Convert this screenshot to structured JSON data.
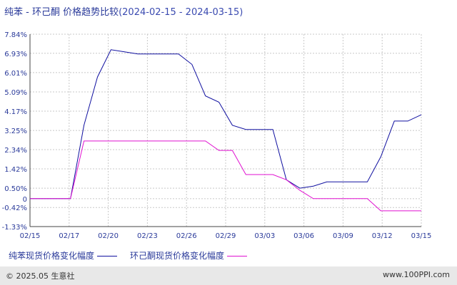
{
  "title": {
    "text": "纯苯 - 环己酮 价格趋势比较",
    "range": "(2024-02-15 - 2024-03-15)"
  },
  "watermark": {
    "name": "生意社",
    "site": "100PPI.COM"
  },
  "footer": {
    "copyright": "© 2025.05 生意社",
    "url": "www.100PPI.com"
  },
  "chart_data": {
    "type": "line",
    "y_ticks": [
      "7.84%",
      "6.93%",
      "6.01%",
      "5.09%",
      "4.17%",
      "3.25%",
      "2.34%",
      "1.42%",
      "0.50%",
      "0",
      "-0.42%",
      "-1.33%"
    ],
    "y_tick_values": [
      7.84,
      6.93,
      6.01,
      5.09,
      4.17,
      3.25,
      2.34,
      1.42,
      0.5,
      0,
      -0.42,
      -1.33
    ],
    "ylim": [
      -1.33,
      7.84
    ],
    "x_ticks": [
      "02/15",
      "02/17",
      "02/20",
      "02/23",
      "02/26",
      "02/29",
      "03/03",
      "03/06",
      "03/09",
      "03/12",
      "03/15"
    ],
    "grid": true,
    "legend_position": "bottom",
    "series": [
      {
        "name": "纯苯现货价格变化幅度",
        "color": "#1010a0",
        "x": [
          0,
          1,
          2,
          3,
          4,
          5,
          6,
          7,
          8,
          9,
          10,
          11,
          12,
          13,
          14,
          15,
          16,
          17,
          18,
          19,
          20,
          21,
          22,
          23,
          24,
          25,
          26,
          27,
          28,
          29
        ],
        "y": [
          0,
          0,
          0,
          0,
          3.5,
          5.8,
          7.1,
          7.0,
          6.9,
          6.9,
          6.9,
          6.9,
          6.4,
          4.9,
          4.6,
          3.5,
          3.3,
          3.3,
          3.3,
          0.9,
          0.5,
          0.6,
          0.8,
          0.8,
          0.8,
          0.8,
          2.0,
          3.7,
          3.7,
          4.0
        ]
      },
      {
        "name": "环己酮现货价格变化幅度",
        "color": "#e010d0",
        "x": [
          0,
          1,
          2,
          3,
          4,
          5,
          6,
          7,
          8,
          9,
          10,
          11,
          12,
          13,
          14,
          15,
          16,
          17,
          18,
          19,
          20,
          21,
          22,
          23,
          24,
          25,
          26,
          27,
          28,
          29
        ],
        "y": [
          0,
          0,
          0,
          0,
          2.75,
          2.75,
          2.75,
          2.75,
          2.75,
          2.75,
          2.75,
          2.75,
          2.75,
          2.75,
          2.3,
          2.3,
          1.15,
          1.15,
          1.15,
          0.9,
          0.4,
          0,
          0,
          0,
          0,
          0,
          -0.58,
          -0.58,
          -0.58,
          -0.58
        ]
      }
    ]
  }
}
